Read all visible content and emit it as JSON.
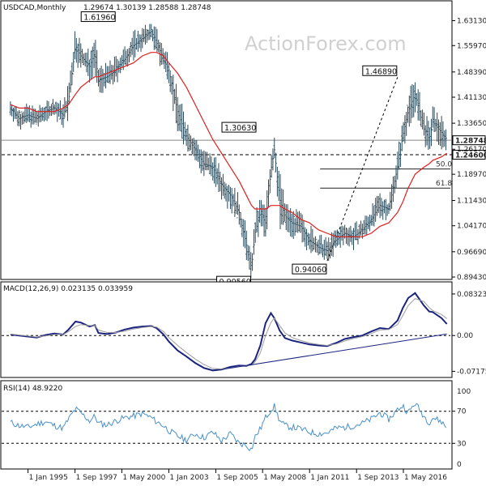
{
  "header": {
    "symbol": "USDCAD,Monthly",
    "ohlc": "1.29674 1.30139 1.28588 1.28748",
    "watermark": "ActionForex.com"
  },
  "chart_data": [
    {
      "type": "ohlc",
      "panel": "price",
      "ylim": [
        0.8943,
        1.6535
      ],
      "y_ticks": [
        "1.63130",
        "1.55970",
        "1.48390",
        "1.41130",
        "1.33650",
        "1.26170",
        "1.18970",
        "1.11430",
        "1.04170",
        "0.96690",
        "0.89430"
      ],
      "x_ticks": [
        "1 Jan 1995",
        "1 Sep 1997",
        "1 May 2000",
        "1 Jan 2003",
        "1 Sep 2005",
        "1 May 2008",
        "1 Jan 2011",
        "1 Sep 2013",
        "1 May 2016"
      ],
      "swing_labels": [
        "1.61960",
        "1.30630",
        "1.46890",
        "0.90560",
        "0.94060"
      ],
      "horizontal_levels": [
        {
          "label": "1.28748",
          "value": 1.28748,
          "style": "solid"
        },
        {
          "label": "1.24600",
          "value": 1.246,
          "style": "dashed"
        }
      ],
      "fib_levels": [
        {
          "label": "50.0",
          "value": 1.2048
        },
        {
          "label": "61.8",
          "value": 1.15
        }
      ],
      "trend_line": {
        "from": [
          2012.0,
          0.9406
        ],
        "to": [
          2016.0,
          1.4689
        ],
        "style": "dashed"
      },
      "x": [
        1994.0,
        1994.5,
        1995.0,
        1995.5,
        1996.0,
        1996.5,
        1997.0,
        1997.3,
        1997.7,
        1998.0,
        1998.5,
        1998.8,
        1999.0,
        1999.5,
        2000.0,
        2000.5,
        2001.0,
        2001.5,
        2002.0,
        2002.3,
        2002.7,
        2003.0,
        2003.5,
        2004.0,
        2004.5,
        2005.0,
        2005.5,
        2006.0,
        2006.5,
        2007.0,
        2007.4,
        2007.7,
        2007.9,
        2008.2,
        2008.5,
        2008.8,
        2009.0,
        2009.3,
        2009.6,
        2010.0,
        2010.5,
        2011.0,
        2011.5,
        2012.0,
        2012.5,
        2013.0,
        2013.5,
        2014.0,
        2014.5,
        2015.0,
        2015.5,
        2016.0,
        2016.3,
        2016.6,
        2017.0,
        2017.5,
        2017.8,
        2018.0,
        2018.5,
        2018.8
      ],
      "close": [
        1.38,
        1.35,
        1.36,
        1.35,
        1.37,
        1.38,
        1.36,
        1.4,
        1.56,
        1.53,
        1.5,
        1.54,
        1.46,
        1.47,
        1.49,
        1.52,
        1.56,
        1.58,
        1.6,
        1.57,
        1.52,
        1.49,
        1.37,
        1.3,
        1.26,
        1.22,
        1.21,
        1.16,
        1.13,
        1.08,
        0.99,
        0.92,
        1.02,
        1.08,
        1.05,
        1.2,
        1.26,
        1.12,
        1.07,
        1.05,
        1.04,
        1.0,
        0.98,
        0.97,
        1.0,
        1.02,
        1.01,
        1.03,
        1.06,
        1.1,
        1.09,
        1.21,
        1.3,
        1.37,
        1.42,
        1.32,
        1.29,
        1.34,
        1.31,
        1.29
      ],
      "high": [
        1.4,
        1.39,
        1.4,
        1.39,
        1.4,
        1.41,
        1.42,
        1.5,
        1.6,
        1.58,
        1.56,
        1.59,
        1.52,
        1.51,
        1.54,
        1.56,
        1.6,
        1.61,
        1.62,
        1.61,
        1.57,
        1.53,
        1.45,
        1.38,
        1.31,
        1.28,
        1.26,
        1.22,
        1.18,
        1.12,
        1.05,
        0.98,
        1.07,
        1.12,
        1.12,
        1.25,
        1.31,
        1.26,
        1.14,
        1.1,
        1.08,
        1.06,
        1.03,
        1.02,
        1.04,
        1.05,
        1.06,
        1.07,
        1.1,
        1.14,
        1.13,
        1.26,
        1.34,
        1.4,
        1.47,
        1.4,
        1.35,
        1.38,
        1.37,
        1.33
      ],
      "low": [
        1.34,
        1.32,
        1.33,
        1.32,
        1.34,
        1.34,
        1.34,
        1.38,
        1.45,
        1.49,
        1.46,
        1.47,
        1.42,
        1.43,
        1.45,
        1.48,
        1.51,
        1.54,
        1.56,
        1.52,
        1.48,
        1.41,
        1.33,
        1.26,
        1.22,
        1.19,
        1.17,
        1.12,
        1.08,
        1.02,
        0.94,
        0.906,
        0.95,
        1.02,
        1.01,
        1.1,
        1.18,
        1.08,
        1.04,
        1.01,
        0.99,
        0.96,
        0.95,
        0.941,
        0.96,
        0.98,
        0.98,
        1.0,
        1.02,
        1.05,
        1.06,
        1.15,
        1.24,
        1.28,
        1.36,
        1.28,
        1.25,
        1.28,
        1.27,
        1.26
      ],
      "sma": [
        1.39,
        1.38,
        1.38,
        1.37,
        1.37,
        1.37,
        1.38,
        1.39,
        1.42,
        1.44,
        1.46,
        1.47,
        1.47,
        1.48,
        1.49,
        1.5,
        1.51,
        1.53,
        1.54,
        1.54,
        1.53,
        1.51,
        1.48,
        1.44,
        1.39,
        1.34,
        1.29,
        1.25,
        1.21,
        1.17,
        1.13,
        1.1,
        1.09,
        1.09,
        1.09,
        1.1,
        1.1,
        1.1,
        1.09,
        1.08,
        1.06,
        1.05,
        1.03,
        1.02,
        1.01,
        1.01,
        1.01,
        1.01,
        1.02,
        1.04,
        1.05,
        1.08,
        1.11,
        1.15,
        1.19,
        1.21,
        1.22,
        1.23,
        1.24,
        1.25
      ]
    },
    {
      "type": "line",
      "panel": "macd",
      "title": "MACD(12,26,9) 0.023135 0.033959",
      "ylim": [
        -0.0808,
        0.088
      ],
      "y_ticks": [
        "0.083235",
        "0.00",
        "-0.071752"
      ],
      "x": [
        1994.0,
        1994.5,
        1995.0,
        1995.5,
        1996.0,
        1996.5,
        1997.0,
        1997.3,
        1997.7,
        1998.0,
        1998.5,
        1998.8,
        1999.0,
        1999.5,
        2000.0,
        2000.5,
        2001.0,
        2001.5,
        2002.0,
        2002.3,
        2002.7,
        2003.0,
        2003.5,
        2004.0,
        2004.5,
        2005.0,
        2005.5,
        2006.0,
        2006.5,
        2007.0,
        2007.4,
        2007.7,
        2007.9,
        2008.2,
        2008.5,
        2008.8,
        2009.0,
        2009.3,
        2009.6,
        2010.0,
        2010.5,
        2011.0,
        2011.5,
        2012.0,
        2012.5,
        2013.0,
        2013.5,
        2014.0,
        2014.5,
        2015.0,
        2015.5,
        2016.0,
        2016.3,
        2016.6,
        2017.0,
        2017.5,
        2017.8,
        2018.0,
        2018.5,
        2018.8
      ],
      "series": [
        {
          "name": "MACD",
          "values": [
            0.002,
            0.0,
            -0.002,
            -0.004,
            0.001,
            0.004,
            0.002,
            0.012,
            0.028,
            0.026,
            0.018,
            0.021,
            0.005,
            0.003,
            0.006,
            0.012,
            0.016,
            0.018,
            0.019,
            0.015,
            0.002,
            -0.012,
            -0.03,
            -0.042,
            -0.055,
            -0.065,
            -0.07,
            -0.068,
            -0.063,
            -0.06,
            -0.061,
            -0.057,
            -0.048,
            -0.02,
            0.025,
            0.045,
            0.035,
            0.01,
            -0.005,
            -0.01,
            -0.014,
            -0.018,
            -0.02,
            -0.021,
            -0.015,
            -0.007,
            -0.003,
            0.0,
            0.008,
            0.015,
            0.013,
            0.03,
            0.055,
            0.075,
            0.085,
            0.06,
            0.048,
            0.047,
            0.035,
            0.023
          ]
        },
        {
          "name": "Signal",
          "values": [
            0.003,
            0.001,
            -0.001,
            -0.003,
            -0.001,
            0.002,
            0.002,
            0.008,
            0.018,
            0.022,
            0.02,
            0.02,
            0.011,
            0.006,
            0.006,
            0.009,
            0.013,
            0.016,
            0.018,
            0.017,
            0.008,
            -0.004,
            -0.02,
            -0.034,
            -0.047,
            -0.058,
            -0.066,
            -0.067,
            -0.065,
            -0.062,
            -0.061,
            -0.059,
            -0.053,
            -0.035,
            0.0,
            0.026,
            0.035,
            0.02,
            0.005,
            -0.004,
            -0.01,
            -0.015,
            -0.018,
            -0.02,
            -0.017,
            -0.011,
            -0.006,
            -0.002,
            0.004,
            0.011,
            0.012,
            0.022,
            0.04,
            0.06,
            0.074,
            0.068,
            0.056,
            0.05,
            0.042,
            0.034
          ]
        }
      ],
      "trend_line": {
        "from": [
          2006.0,
          -0.068
        ],
        "to": [
          2018.8,
          0.003
        ]
      }
    },
    {
      "type": "line",
      "panel": "rsi",
      "title": "RSI(14) 48.9220",
      "ylim": [
        0,
        100
      ],
      "y_ticks": [
        "100",
        "70",
        "30",
        "0"
      ],
      "levels": [
        70,
        30
      ],
      "x": [
        1994.0,
        1994.5,
        1995.0,
        1995.5,
        1996.0,
        1996.5,
        1997.0,
        1997.3,
        1997.7,
        1998.0,
        1998.5,
        1998.8,
        1999.0,
        1999.5,
        2000.0,
        2000.5,
        2001.0,
        2001.5,
        2002.0,
        2002.3,
        2002.7,
        2003.0,
        2003.5,
        2004.0,
        2004.5,
        2005.0,
        2005.5,
        2006.0,
        2006.5,
        2007.0,
        2007.4,
        2007.7,
        2007.9,
        2008.2,
        2008.5,
        2008.8,
        2009.0,
        2009.3,
        2009.6,
        2010.0,
        2010.5,
        2011.0,
        2011.5,
        2012.0,
        2012.5,
        2013.0,
        2013.5,
        2014.0,
        2014.5,
        2015.0,
        2015.5,
        2016.0,
        2016.3,
        2016.6,
        2017.0,
        2017.5,
        2017.8,
        2018.0,
        2018.5,
        2018.8
      ],
      "series": [
        {
          "name": "RSI",
          "values": [
            56,
            52,
            50,
            54,
            57,
            52,
            49,
            60,
            73,
            68,
            58,
            64,
            55,
            53,
            58,
            62,
            64,
            67,
            62,
            57,
            52,
            46,
            39,
            34,
            42,
            37,
            44,
            33,
            42,
            30,
            28,
            22,
            38,
            48,
            62,
            72,
            76,
            58,
            52,
            50,
            48,
            44,
            42,
            43,
            49,
            50,
            52,
            55,
            60,
            68,
            60,
            72,
            77,
            68,
            80,
            64,
            56,
            62,
            57,
            49
          ]
        }
      ]
    }
  ]
}
